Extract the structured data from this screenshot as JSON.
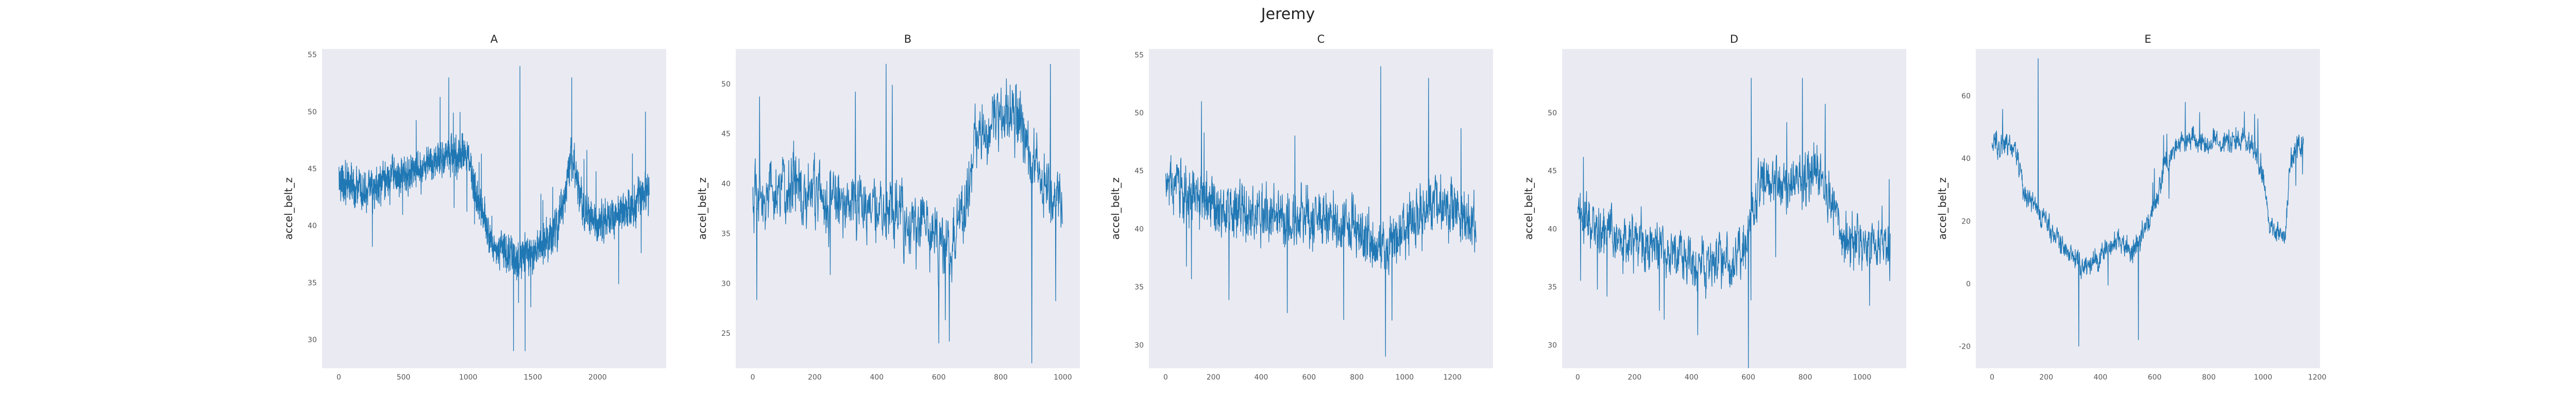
{
  "figure": {
    "title": "Jeremy"
  },
  "chart_data": [
    {
      "type": "line",
      "title": "A",
      "xlabel": "",
      "ylabel": "accel_belt_z",
      "xlim": [
        -130,
        2530
      ],
      "ylim": [
        27.5,
        55.5
      ],
      "xticks": [
        0,
        500,
        1000,
        1500,
        2000
      ],
      "yticks": [
        30,
        35,
        40,
        45,
        50,
        55
      ],
      "grid": false,
      "color": "#1f77b4",
      "series": [
        {
          "n": 2400,
          "noise": 2.2,
          "anchors": [
            [
              0,
              44
            ],
            [
              200,
              43
            ],
            [
              400,
              44
            ],
            [
              600,
              45
            ],
            [
              800,
              46
            ],
            [
              1000,
              46
            ],
            [
              1100,
              41
            ],
            [
              1200,
              38
            ],
            [
              1400,
              37
            ],
            [
              1550,
              38
            ],
            [
              1700,
              40
            ],
            [
              1800,
              46
            ],
            [
              1900,
              41
            ],
            [
              2000,
              40
            ],
            [
              2200,
              41
            ],
            [
              2400,
              43
            ]
          ],
          "marks": [
            [
              1400,
              54
            ],
            [
              1440,
              29
            ],
            [
              1800,
              53
            ],
            [
              850,
              53
            ],
            [
              1350,
              29
            ],
            [
              2370,
              50
            ]
          ]
        }
      ]
    },
    {
      "type": "line",
      "title": "B",
      "xlabel": "",
      "ylabel": "accel_belt_z",
      "xlim": [
        -55,
        1055
      ],
      "ylim": [
        21.5,
        53.5
      ],
      "xticks": [
        0,
        200,
        400,
        600,
        800,
        1000
      ],
      "yticks": [
        25,
        30,
        35,
        40,
        45,
        50
      ],
      "grid": false,
      "color": "#1f77b4",
      "series": [
        {
          "n": 1000,
          "noise": 4.5,
          "anchors": [
            [
              0,
              38
            ],
            [
              150,
              40
            ],
            [
              300,
              38
            ],
            [
              450,
              37
            ],
            [
              550,
              35
            ],
            [
              650,
              33
            ],
            [
              720,
              44
            ],
            [
              800,
              46
            ],
            [
              850,
              47
            ],
            [
              900,
              42
            ],
            [
              950,
              40
            ],
            [
              1000,
              37
            ]
          ],
          "marks": [
            [
              960,
              52
            ],
            [
              900,
              22
            ],
            [
              600,
              24
            ],
            [
              430,
              52
            ],
            [
              850,
              50
            ]
          ]
        }
      ]
    },
    {
      "type": "line",
      "title": "C",
      "xlabel": "",
      "ylabel": "accel_belt_z",
      "xlim": [
        -70,
        1370
      ],
      "ylim": [
        28,
        55.5
      ],
      "xticks": [
        0,
        200,
        400,
        600,
        800,
        1000,
        1200
      ],
      "yticks": [
        30,
        35,
        40,
        45,
        50,
        55
      ],
      "grid": false,
      "color": "#1f77b4",
      "series": [
        {
          "n": 1300,
          "noise": 3.2,
          "anchors": [
            [
              0,
              44
            ],
            [
              200,
              42
            ],
            [
              400,
              41
            ],
            [
              600,
              41
            ],
            [
              800,
              40
            ],
            [
              900,
              38
            ],
            [
              1000,
              40
            ],
            [
              1100,
              42
            ],
            [
              1200,
              42
            ],
            [
              1300,
              40
            ]
          ],
          "marks": [
            [
              900,
              54
            ],
            [
              920,
              29
            ],
            [
              1100,
              53
            ],
            [
              150,
              51
            ]
          ]
        }
      ]
    },
    {
      "type": "line",
      "title": "D",
      "xlabel": "",
      "ylabel": "accel_belt_z",
      "xlim": [
        -55,
        1155
      ],
      "ylim": [
        28,
        55.5
      ],
      "xticks": [
        0,
        200,
        400,
        600,
        800,
        1000
      ],
      "yticks": [
        30,
        35,
        40,
        45,
        50
      ],
      "grid": false,
      "color": "#1f77b4",
      "series": [
        {
          "n": 1100,
          "noise": 3,
          "anchors": [
            [
              0,
              41
            ],
            [
              150,
              39
            ],
            [
              300,
              38
            ],
            [
              450,
              37
            ],
            [
              580,
              38
            ],
            [
              650,
              44
            ],
            [
              750,
              44
            ],
            [
              850,
              45
            ],
            [
              950,
              39
            ],
            [
              1100,
              38
            ]
          ],
          "marks": [
            [
              610,
              53
            ],
            [
              790,
              53
            ],
            [
              600,
              28
            ],
            [
              1070,
              42
            ]
          ]
        }
      ]
    },
    {
      "type": "line",
      "title": "E",
      "xlabel": "",
      "ylabel": "accel_belt_z",
      "xlim": [
        -60,
        1210
      ],
      "ylim": [
        -27,
        75
      ],
      "xticks": [
        0,
        200,
        400,
        600,
        800,
        1000,
        1200
      ],
      "yticks": [
        -20,
        0,
        20,
        40,
        60
      ],
      "grid": false,
      "color": "#1f77b4",
      "series": [
        {
          "n": 1150,
          "noise": 5,
          "anchors": [
            [
              0,
              45
            ],
            [
              80,
              44
            ],
            [
              120,
              30
            ],
            [
              200,
              20
            ],
            [
              280,
              10
            ],
            [
              360,
              5
            ],
            [
              450,
              15
            ],
            [
              520,
              10
            ],
            [
              600,
              25
            ],
            [
              640,
              38
            ],
            [
              700,
              46
            ],
            [
              800,
              45
            ],
            [
              950,
              46
            ],
            [
              1000,
              35
            ],
            [
              1020,
              20
            ],
            [
              1080,
              15
            ],
            [
              1100,
              40
            ],
            [
              1150,
              44
            ]
          ],
          "marks": [
            [
              170,
              72
            ],
            [
              320,
              -20
            ],
            [
              900,
              50
            ],
            [
              540,
              -18
            ]
          ]
        }
      ]
    }
  ]
}
